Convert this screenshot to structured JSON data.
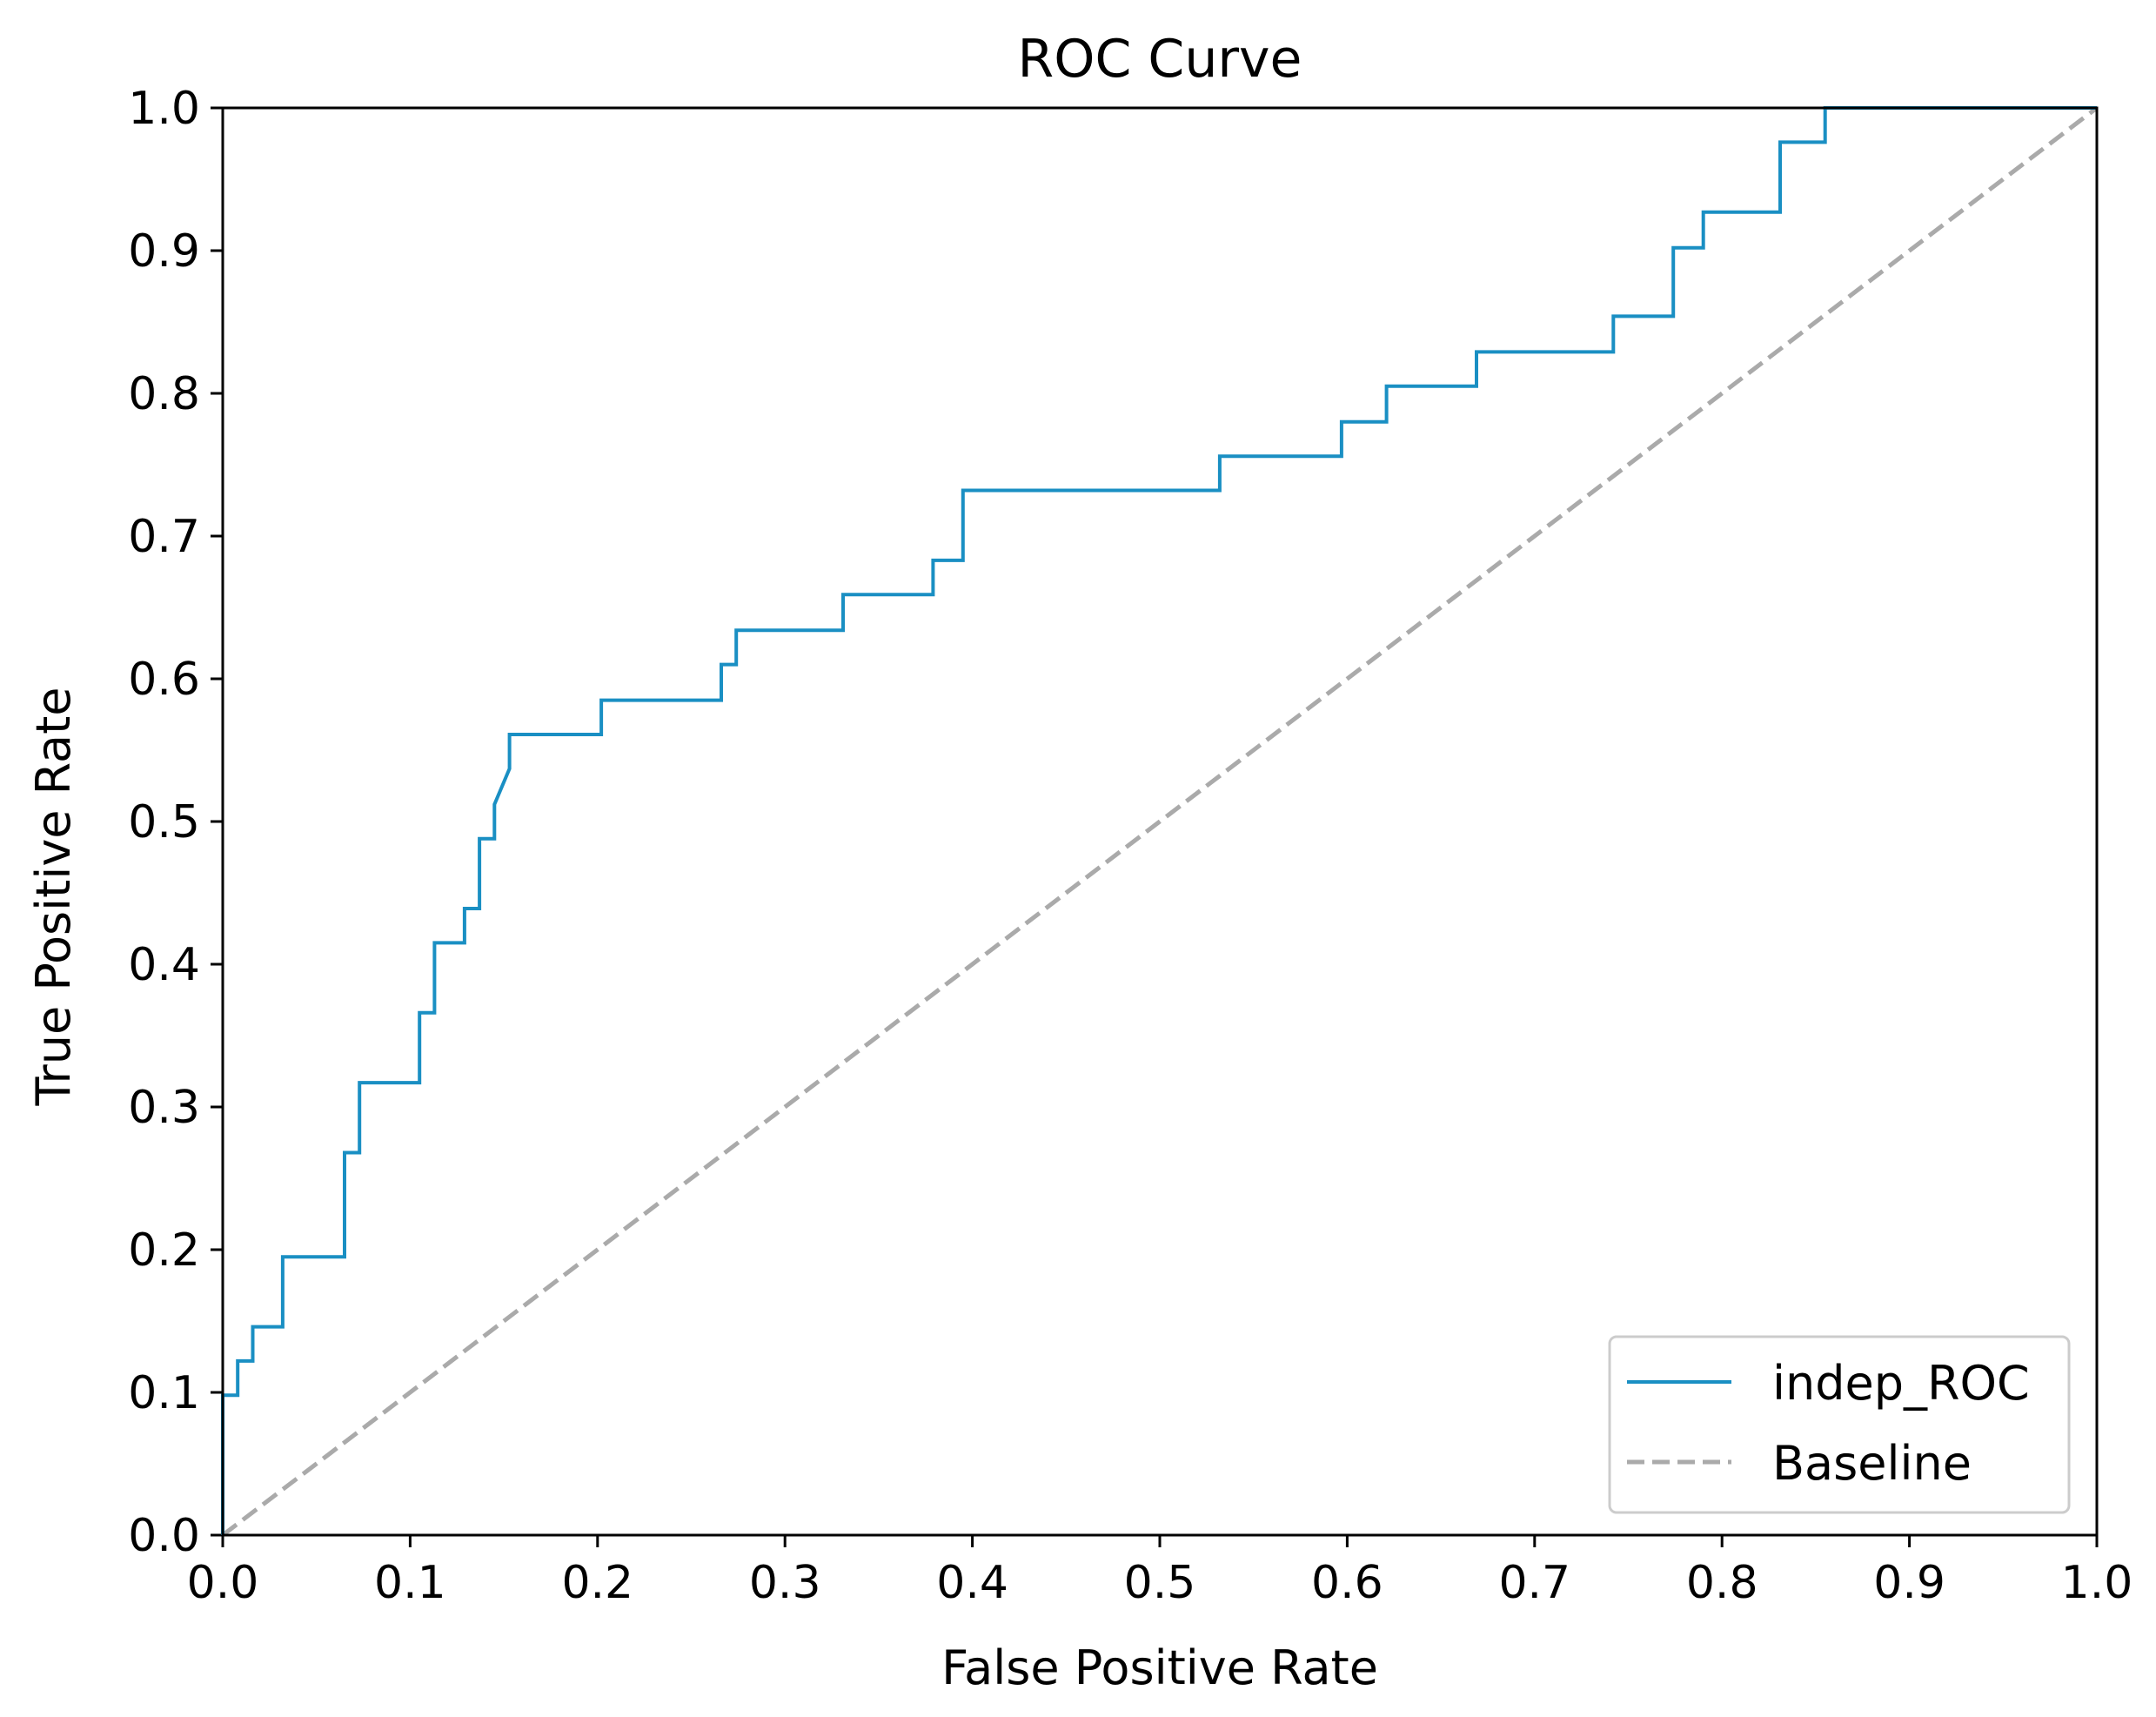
{
  "chart_data": {
    "type": "line",
    "title": "ROC Curve",
    "xlabel": "False Positive Rate",
    "ylabel": "True Positive Rate",
    "xlim": [
      0.0,
      1.0
    ],
    "ylim": [
      0.0,
      1.0
    ],
    "grid": false,
    "legend_position": "bottom-right",
    "x_ticks": [
      "0.0",
      "0.1",
      "0.2",
      "0.3",
      "0.4",
      "0.5",
      "0.6",
      "0.7",
      "0.8",
      "0.9",
      "1.0"
    ],
    "y_ticks": [
      "0.0",
      "0.1",
      "0.2",
      "0.3",
      "0.4",
      "0.5",
      "0.6",
      "0.7",
      "0.8",
      "0.9",
      "1.0"
    ],
    "series": [
      {
        "name": "indep_ROC",
        "color": "#1a8fc3",
        "style": "solid",
        "x": [
          0.0,
          0.0,
          0.008,
          0.008,
          0.016,
          0.016,
          0.032,
          0.032,
          0.065,
          0.065,
          0.073,
          0.073,
          0.105,
          0.105,
          0.113,
          0.113,
          0.129,
          0.129,
          0.137,
          0.137,
          0.145,
          0.145,
          0.153,
          0.153,
          0.202,
          0.202,
          0.266,
          0.266,
          0.274,
          0.274,
          0.331,
          0.331,
          0.379,
          0.379,
          0.395,
          0.395,
          0.532,
          0.532,
          0.597,
          0.597,
          0.621,
          0.621,
          0.669,
          0.669,
          0.742,
          0.742,
          0.774,
          0.774,
          0.79,
          0.79,
          0.831,
          0.831,
          0.855,
          0.855,
          1.0
        ],
        "y": [
          0.0,
          0.098,
          0.098,
          0.122,
          0.122,
          0.146,
          0.146,
          0.195,
          0.195,
          0.268,
          0.268,
          0.317,
          0.317,
          0.366,
          0.366,
          0.415,
          0.415,
          0.439,
          0.439,
          0.488,
          0.488,
          0.512,
          0.537,
          0.561,
          0.561,
          0.585,
          0.585,
          0.61,
          0.61,
          0.634,
          0.634,
          0.659,
          0.659,
          0.683,
          0.683,
          0.732,
          0.732,
          0.756,
          0.756,
          0.78,
          0.78,
          0.805,
          0.805,
          0.829,
          0.829,
          0.854,
          0.854,
          0.902,
          0.902,
          0.927,
          0.927,
          0.976,
          0.976,
          1.0,
          1.0
        ]
      },
      {
        "name": "Baseline",
        "color": "#aaaaaa",
        "style": "dashed",
        "x": [
          0.0,
          1.0
        ],
        "y": [
          0.0,
          1.0
        ]
      }
    ]
  }
}
